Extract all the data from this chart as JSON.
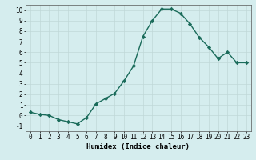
{
  "x": [
    0,
    1,
    2,
    3,
    4,
    5,
    6,
    7,
    8,
    9,
    10,
    11,
    12,
    13,
    14,
    15,
    16,
    17,
    18,
    19,
    20,
    21,
    22,
    23
  ],
  "y": [
    0.3,
    0.1,
    0.0,
    -0.4,
    -0.6,
    -0.8,
    -0.2,
    1.1,
    1.6,
    2.1,
    3.3,
    4.7,
    7.5,
    9.0,
    10.1,
    10.1,
    9.7,
    8.7,
    7.4,
    6.5,
    5.4,
    6.0,
    5.0,
    5.0
  ],
  "line_color": "#1a6b5a",
  "marker": "D",
  "marker_size": 2.2,
  "linewidth": 1.0,
  "xlabel": "Humidex (Indice chaleur)",
  "xlim": [
    -0.5,
    23.5
  ],
  "ylim": [
    -1.5,
    10.5
  ],
  "yticks": [
    -1,
    0,
    1,
    2,
    3,
    4,
    5,
    6,
    7,
    8,
    9,
    10
  ],
  "xticks": [
    0,
    1,
    2,
    3,
    4,
    5,
    6,
    7,
    8,
    9,
    10,
    11,
    12,
    13,
    14,
    15,
    16,
    17,
    18,
    19,
    20,
    21,
    22,
    23
  ],
  "xtick_labels": [
    "0",
    "1",
    "2",
    "3",
    "4",
    "5",
    "6",
    "7",
    "8",
    "9",
    "10",
    "11",
    "12",
    "13",
    "14",
    "15",
    "16",
    "17",
    "18",
    "19",
    "20",
    "21",
    "22",
    "23"
  ],
  "bg_color": "#d5edee",
  "grid_color": "#c0d8d8",
  "xlabel_fontsize": 6.5,
  "tick_fontsize": 5.5
}
